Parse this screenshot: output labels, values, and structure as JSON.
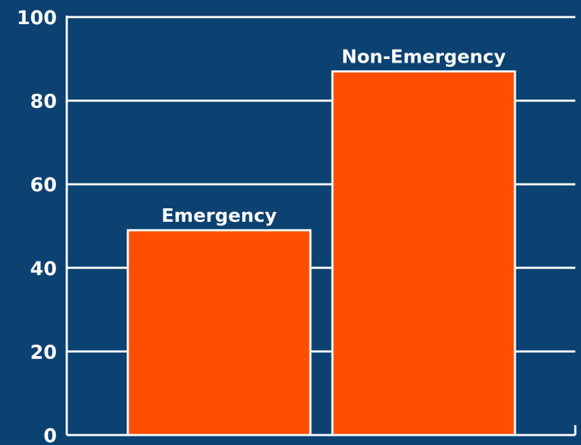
{
  "chart_data": {
    "type": "bar",
    "categories": [
      "Emergency",
      "Non-Emergency"
    ],
    "values": [
      49,
      87
    ],
    "ylim": [
      0,
      100
    ],
    "yticks": [
      0,
      20,
      40,
      60,
      80,
      100
    ],
    "title": "",
    "xlabel": "",
    "ylabel": "",
    "grid": true,
    "legend": "none",
    "colors": {
      "background": "#0b4272",
      "bar_fill": "#ff4e00",
      "bar_stroke": "#ffffff",
      "grid": "#ffffff",
      "text": "#ffffff"
    }
  }
}
